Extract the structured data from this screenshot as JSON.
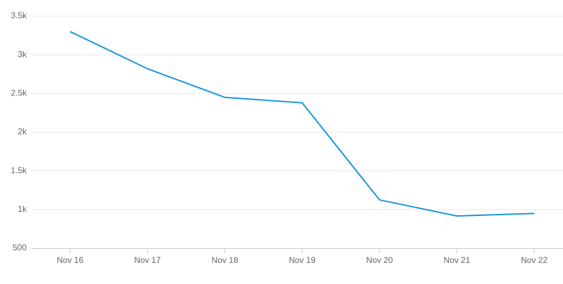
{
  "chart_data": {
    "type": "line",
    "categories": [
      "Nov 16",
      "Nov 17",
      "Nov 18",
      "Nov 19",
      "Nov 20",
      "Nov 21",
      "Nov 22"
    ],
    "series": [
      {
        "color": "#1a96de",
        "values": [
          3300,
          2820,
          2450,
          2380,
          1125,
          917,
          950
        ]
      }
    ],
    "ylim": [
      500,
      3500
    ],
    "yticks": [
      500,
      {
        "value": 1000,
        "label": "1k"
      },
      {
        "value": 1500,
        "label": "1.5k"
      },
      {
        "value": 2000,
        "label": "2k"
      },
      {
        "value": 2500,
        "label": "2.5k"
      },
      {
        "value": 3000,
        "label": "3k"
      },
      {
        "value": 3500,
        "label": "3.5k"
      }
    ],
    "grid": true
  }
}
